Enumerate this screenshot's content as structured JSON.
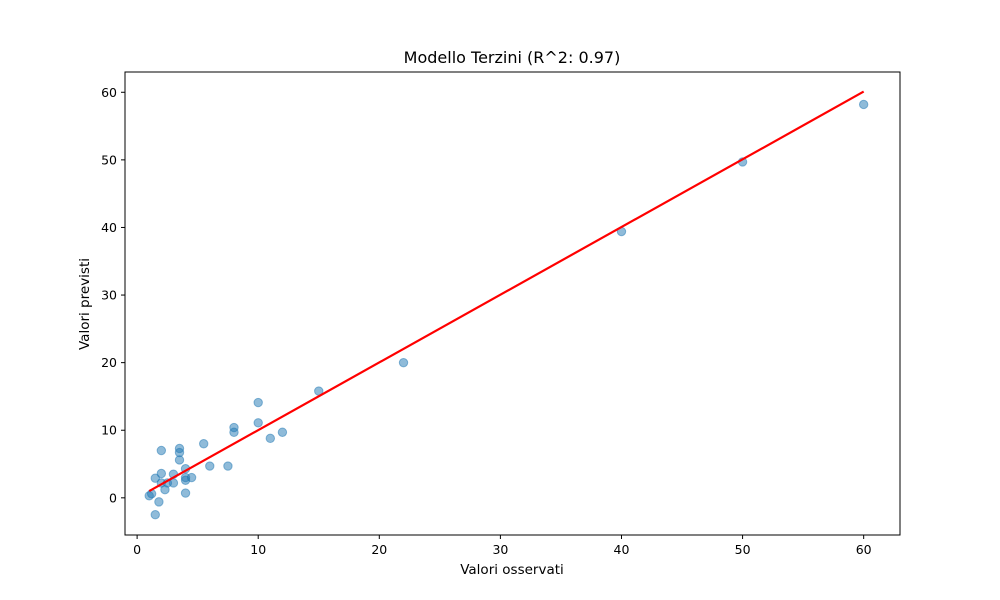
{
  "chart_data": {
    "type": "scatter",
    "title": "Modello Terzini (R^2: 0.97)",
    "xlabel": "Valori osservati",
    "ylabel": "Valori previsti",
    "xlim": [
      -1,
      63
    ],
    "ylim": [
      -5.5,
      63
    ],
    "xticks": [
      0,
      10,
      20,
      30,
      40,
      50,
      60
    ],
    "yticks": [
      0,
      10,
      20,
      30,
      40,
      50,
      60
    ],
    "grid": false,
    "colors": {
      "points": "#1f77b4",
      "fit_line": "#ff0000",
      "axes": "#000000"
    },
    "series": [
      {
        "kind": "points",
        "x": [
          1,
          1.2,
          1.5,
          1.5,
          1.8,
          2,
          2,
          2,
          2.3,
          2.5,
          3,
          3,
          3.5,
          3.5,
          3.5,
          4,
          4,
          4,
          4,
          4.5,
          5.5,
          6,
          7.5,
          8,
          8,
          10,
          10,
          11,
          12,
          15,
          22,
          40,
          50,
          60
        ],
        "y": [
          0.3,
          0.6,
          -2.5,
          2.9,
          -0.6,
          7.0,
          3.6,
          2.2,
          1.2,
          2.2,
          3.5,
          2.2,
          7.3,
          6.7,
          5.6,
          4.3,
          3.0,
          2.6,
          0.7,
          3.0,
          8.0,
          4.7,
          4.7,
          9.7,
          10.4,
          11.1,
          14.1,
          8.8,
          9.7,
          15.8,
          20.0,
          39.4,
          49.7,
          58.2
        ]
      },
      {
        "kind": "line",
        "x": [
          1,
          60
        ],
        "y": [
          1.0,
          60.1
        ]
      }
    ]
  }
}
